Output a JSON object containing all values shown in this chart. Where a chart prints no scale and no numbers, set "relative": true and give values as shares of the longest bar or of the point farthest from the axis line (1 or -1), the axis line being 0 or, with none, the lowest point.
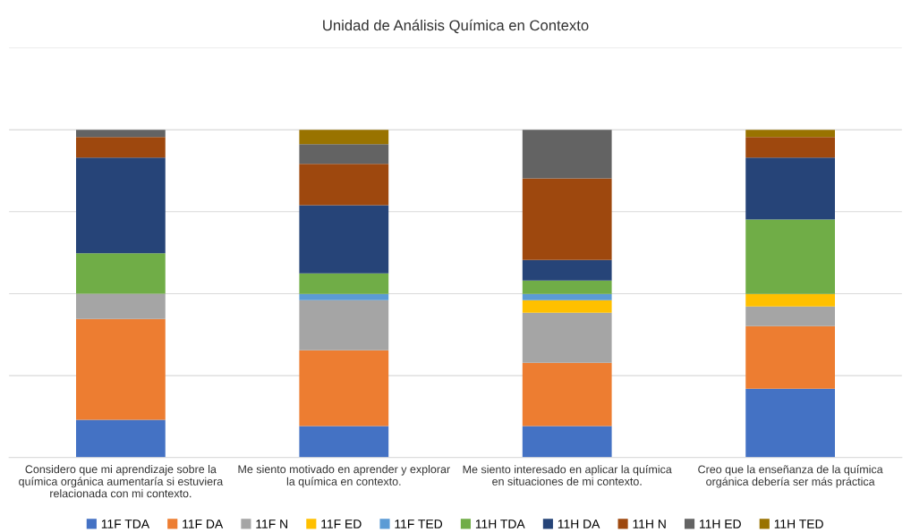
{
  "chart_data": {
    "type": "bar",
    "title": "Unidad de Análisis Química en Contexto",
    "categories": [
      "Considero que mi aprendizaje sobre la\nquímica orgánica aumentaría si estuviera\nrelacionada con mi contexto.",
      "Me siento motivado en aprender y explorar\nla química en contexto.",
      "Me siento interesado en aplicar la química\nen situaciones de mi contexto.",
      "Creo que la enseñanza de la química\norgánica debería ser más práctica"
    ],
    "relative": true,
    "stacked": true,
    "grid": "y",
    "legend": "bottom",
    "series": [
      {
        "name": "11F TDA",
        "color": "#4472c4",
        "values": [
          0.115,
          0.096,
          0.096,
          0.21
        ]
      },
      {
        "name": "11F DA",
        "color": "#ed7d31",
        "values": [
          0.308,
          0.231,
          0.193,
          0.191
        ]
      },
      {
        "name": "11F N",
        "color": "#a5a5a5",
        "values": [
          0.077,
          0.153,
          0.153,
          0.06
        ]
      },
      {
        "name": "11F ED",
        "color": "#ffc000",
        "values": [
          0,
          0,
          0.038,
          0.038
        ]
      },
      {
        "name": "11F TED",
        "color": "#5b9bd5",
        "values": [
          0,
          0.019,
          0.019,
          0
        ]
      },
      {
        "name": "11H TDA",
        "color": "#70ad47",
        "values": [
          0.123,
          0.063,
          0.041,
          0.227
        ]
      },
      {
        "name": "11H DA",
        "color": "#264478",
        "values": [
          0.292,
          0.208,
          0.063,
          0.189
        ]
      },
      {
        "name": "11H N",
        "color": "#9e480e",
        "values": [
          0.063,
          0.126,
          0.249,
          0.063
        ]
      },
      {
        "name": "11H ED",
        "color": "#636363",
        "values": [
          0.022,
          0.06,
          0.148,
          0
        ]
      },
      {
        "name": "11H TED",
        "color": "#997300",
        "values": [
          0,
          0.044,
          0,
          0.022
        ]
      }
    ]
  }
}
